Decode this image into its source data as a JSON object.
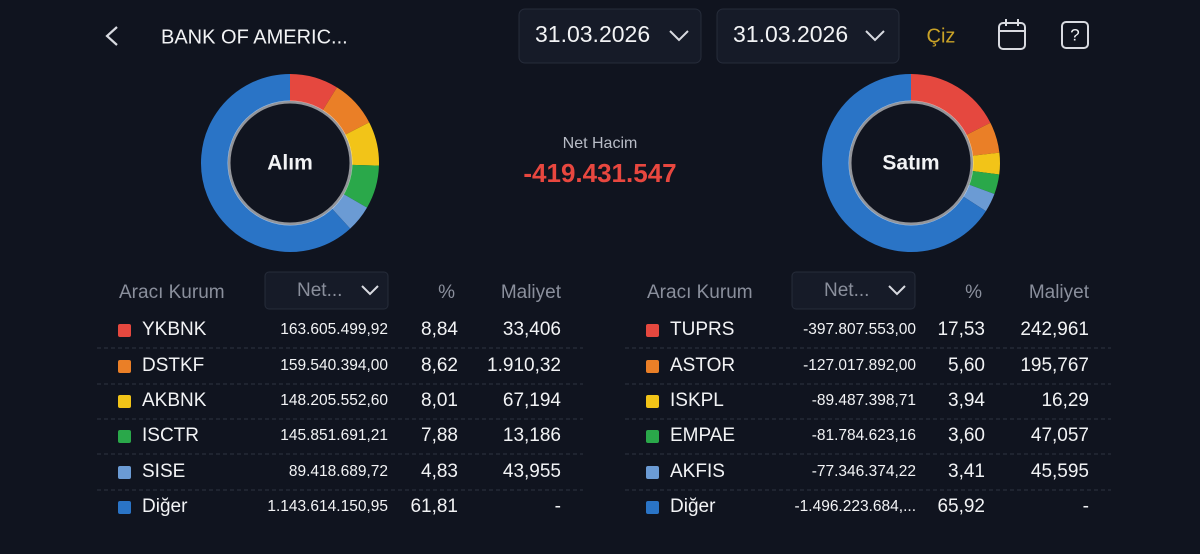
{
  "header": {
    "title": "BANK OF AMERIC...",
    "start_date": "31.03.2026",
    "end_date": "31.03.2026",
    "draw_button": "Çiz"
  },
  "summary": {
    "label": "Net Hacim",
    "value": "-419.431.547"
  },
  "panels": [
    {
      "title": "Alım",
      "columns": [
        "Aracı Kurum",
        "Net...",
        "%",
        "Maliyet"
      ],
      "rows": [
        {
          "name": "YKBNK",
          "net": "163.605.499,92",
          "pct": {
            "value": 8.84,
            "label": "8,84"
          },
          "cost": "33,406",
          "color": "#e5483f"
        },
        {
          "name": "DSTKF",
          "net": "159.540.394,00",
          "pct": {
            "value": 8.62,
            "label": "8,62"
          },
          "cost": "1.910,32",
          "color": "#ea7f27"
        },
        {
          "name": "AKBNK",
          "net": "148.205.552,60",
          "pct": {
            "value": 8.01,
            "label": "8,01"
          },
          "cost": "67,194",
          "color": "#f2c418"
        },
        {
          "name": "ISCTR",
          "net": "145.851.691,21",
          "pct": {
            "value": 7.88,
            "label": "7,88"
          },
          "cost": "13,186",
          "color": "#2aa84a"
        },
        {
          "name": "SISE",
          "net": "89.418.689,72",
          "pct": {
            "value": 4.83,
            "label": "4,83"
          },
          "cost": "43,955",
          "color": "#6b9bd4"
        },
        {
          "name": "Diğer",
          "net": "1.143.614.150,95",
          "pct": {
            "value": 61.81,
            "label": "61,81"
          },
          "cost": "-",
          "color": "#2a74c6"
        }
      ]
    },
    {
      "title": "Satım",
      "columns": [
        "Aracı Kurum",
        "Net...",
        "%",
        "Maliyet"
      ],
      "rows": [
        {
          "name": "TUPRS",
          "net": "-397.807.553,00",
          "pct": {
            "value": 17.53,
            "label": "17,53"
          },
          "cost": "242,961",
          "color": "#e5483f"
        },
        {
          "name": "ASTOR",
          "net": "-127.017.892,00",
          "pct": {
            "value": 5.6,
            "label": "5,60"
          },
          "cost": "195,767",
          "color": "#ea7f27"
        },
        {
          "name": "ISKPL",
          "net": "-89.487.398,71",
          "pct": {
            "value": 3.94,
            "label": "3,94"
          },
          "cost": "16,29",
          "color": "#f2c418"
        },
        {
          "name": "EMPAE",
          "net": "-81.784.623,16",
          "pct": {
            "value": 3.6,
            "label": "3,60"
          },
          "cost": "47,057",
          "color": "#2aa84a"
        },
        {
          "name": "AKFIS",
          "net": "-77.346.374,22",
          "pct": {
            "value": 3.41,
            "label": "3,41"
          },
          "cost": "45,595",
          "color": "#6b9bd4"
        },
        {
          "name": "Diğer",
          "net": "-1.496.223.684,...",
          "pct": {
            "value": 65.92,
            "label": "65,92"
          },
          "cost": "-",
          "color": "#2a74c6"
        }
      ]
    }
  ]
}
